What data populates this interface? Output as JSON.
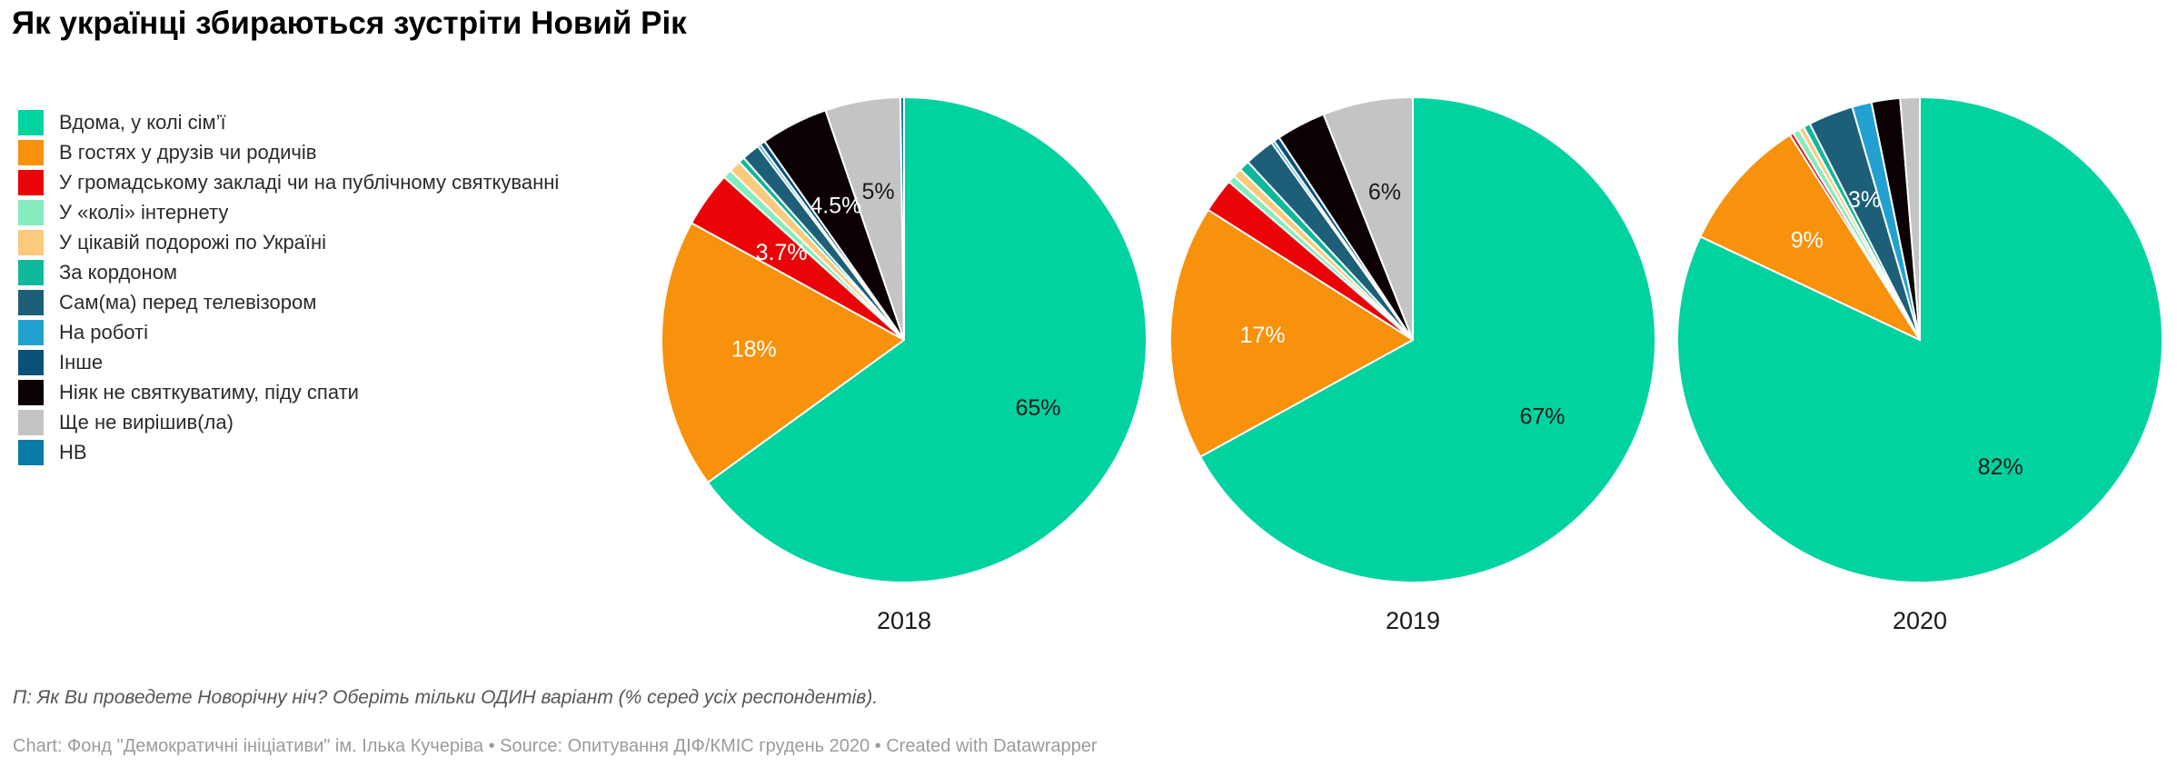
{
  "header": {
    "title": "Як українці збираються зустріти Новий Рік"
  },
  "chart_data": {
    "type": "pie",
    "unit": "%",
    "legend_position": "left",
    "categories": [
      "Вдома, у колі сім’ї",
      "В гостях у друзів чи родичів",
      "У громадському закладі чи на публічному святкуванні",
      "У «колі» інтернету",
      "У цікавій подорожі по Україні",
      "За кордоном",
      "Сам(ма) перед телевізором",
      "На роботі",
      "Інше",
      "Ніяк не святкуватиму, піду спати",
      "Ще не вирішив(ла)",
      "НВ"
    ],
    "colors": [
      "#00d2a0",
      "#f8910b",
      "#ea0408",
      "#85ecbd",
      "#fbca7d",
      "#0fb89a",
      "#1d5f78",
      "#22a1d1",
      "#0a5178",
      "#0b0104",
      "#c4c4c4",
      "#0c7aa6"
    ],
    "label_text_colors": {
      "dark": "#1a1a1a",
      "white": "#ffffff"
    },
    "pies": [
      {
        "year": "2018",
        "values": [
          65,
          18,
          3.7,
          0.6,
          0.8,
          0.4,
          1.2,
          0.2,
          0.35,
          4.5,
          5,
          0.25
        ],
        "labels": [
          {
            "index": 0,
            "text": "65%",
            "tone": "dark"
          },
          {
            "index": 1,
            "text": "18%",
            "tone": "white"
          },
          {
            "index": 2,
            "text": "3.7%",
            "tone": "white"
          },
          {
            "index": 9,
            "text": "4.5%",
            "tone": "white"
          },
          {
            "index": 10,
            "text": "5%",
            "tone": "dark"
          }
        ]
      },
      {
        "year": "2019",
        "values": [
          67,
          17,
          2.3,
          0.5,
          0.6,
          0.7,
          2.0,
          0.2,
          0.4,
          3.3,
          6,
          0
        ],
        "labels": [
          {
            "index": 0,
            "text": "67%",
            "tone": "dark"
          },
          {
            "index": 1,
            "text": "17%",
            "tone": "white"
          },
          {
            "index": 10,
            "text": "6%",
            "tone": "dark"
          }
        ]
      },
      {
        "year": "2020",
        "values": [
          82,
          9,
          0.25,
          0.45,
          0.35,
          0.45,
          3,
          1.3,
          0,
          1.9,
          1.3,
          0
        ],
        "labels": [
          {
            "index": 0,
            "text": "82%",
            "tone": "dark"
          },
          {
            "index": 1,
            "text": "9%",
            "tone": "white"
          },
          {
            "index": 6,
            "text": "3%",
            "tone": "white"
          }
        ]
      }
    ]
  },
  "footer": {
    "note": "П: Як Ви проведете Новорічну ніч? Оберіть тільки ОДИН варіант (% серед усіх респондентів).",
    "credit": "Chart: Фонд \"Демократичні ініціативи\" ім. Ілька Кучеріва • Source: Опитування ДІФ/КМІС грудень 2020 • Created with Datawrapper"
  }
}
